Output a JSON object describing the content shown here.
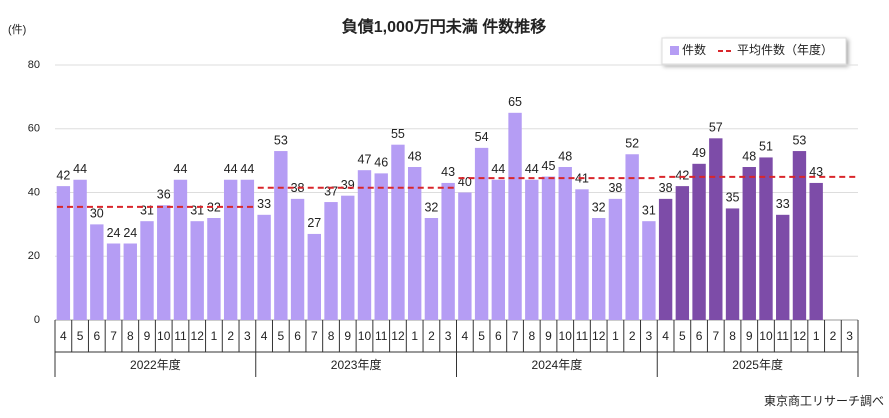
{
  "chart_data": {
    "type": "bar",
    "title": "負債1,000万円未満  件数推移",
    "y_unit": "(件)",
    "source": "東京商工リサーチ調べ",
    "ylim": [
      0,
      80
    ],
    "yticks": [
      0,
      20,
      40,
      60,
      80
    ],
    "grid": true,
    "series": [
      {
        "name": "件数",
        "color": "#b59df4"
      },
      {
        "name": "平均件数（年度）",
        "color": "#d9262b"
      }
    ],
    "groups": [
      {
        "label": "2022年度",
        "color": "#b59df4",
        "average": 35.5,
        "categories": [
          "4",
          "5",
          "6",
          "7",
          "8",
          "9",
          "10",
          "11",
          "12",
          "1",
          "2",
          "3"
        ],
        "values": [
          42,
          44,
          30,
          24,
          24,
          31,
          36,
          44,
          31,
          32,
          44,
          44
        ]
      },
      {
        "label": "2023年度",
        "color": "#b59df4",
        "average": 41.5,
        "categories": [
          "4",
          "5",
          "6",
          "7",
          "8",
          "9",
          "10",
          "11",
          "12",
          "1",
          "2",
          "3"
        ],
        "values": [
          33,
          53,
          38,
          27,
          37,
          39,
          47,
          46,
          55,
          48,
          32,
          43
        ]
      },
      {
        "label": "2024年度",
        "color": "#b59df4",
        "average": 44.5,
        "categories": [
          "4",
          "5",
          "6",
          "7",
          "8",
          "9",
          "10",
          "11",
          "12",
          "1",
          "2",
          "3"
        ],
        "values": [
          40,
          54,
          44,
          65,
          44,
          45,
          48,
          41,
          32,
          38,
          52,
          31
        ]
      },
      {
        "label": "2025年度",
        "color": "#7d4ca8",
        "average": 44.9,
        "categories": [
          "4",
          "5",
          "6",
          "7",
          "8",
          "9",
          "10",
          "11",
          "12",
          "1",
          "2",
          "3"
        ],
        "values": [
          38,
          42,
          49,
          57,
          35,
          48,
          51,
          33,
          53,
          43,
          null,
          null
        ]
      }
    ]
  }
}
